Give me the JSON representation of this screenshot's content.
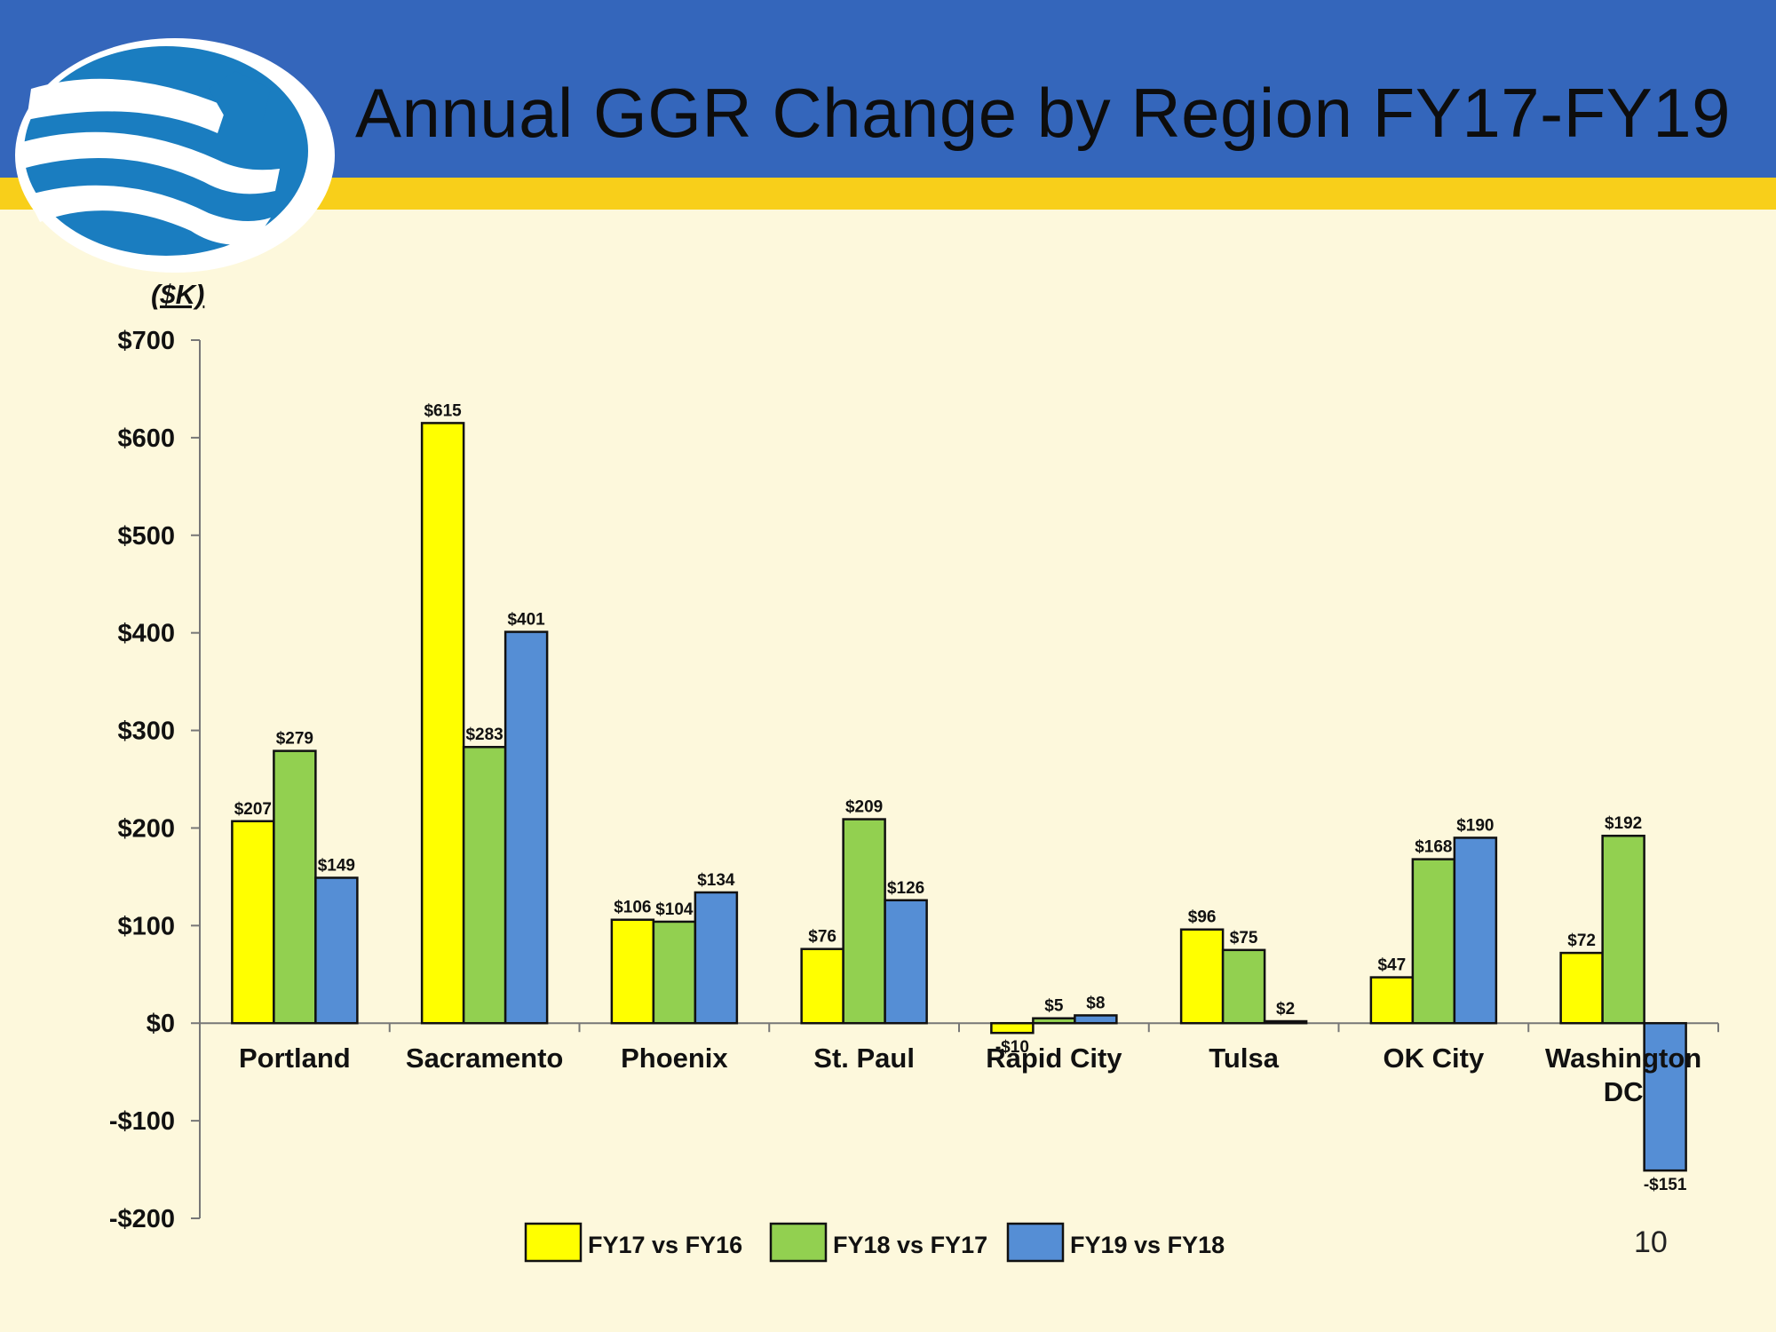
{
  "slide": {
    "title": "Annual GGR Change by Region FY17-FY19",
    "page_number": "10",
    "colors": {
      "header": "#3466bb",
      "band": "#f8cf1a",
      "background": "#fdf8dc"
    },
    "logo": "eagle-wave-logo"
  },
  "chart_data": {
    "type": "bar",
    "ylabel": "($K)",
    "ylim": [
      -200,
      700
    ],
    "yticks": [
      {
        "value": 700,
        "label": "$700"
      },
      {
        "value": 600,
        "label": "$600"
      },
      {
        "value": 500,
        "label": "$500"
      },
      {
        "value": 400,
        "label": "$400"
      },
      {
        "value": 300,
        "label": "$300"
      },
      {
        "value": 200,
        "label": "$200"
      },
      {
        "value": 100,
        "label": "$100"
      },
      {
        "value": 0,
        "label": "$0"
      },
      {
        "value": -100,
        "label": "-$100"
      },
      {
        "value": -200,
        "label": "-$200"
      }
    ],
    "categories": [
      "Portland",
      "Sacramento",
      "Phoenix",
      "St. Paul",
      "Rapid City",
      "Tulsa",
      "OK City",
      "Washington DC"
    ],
    "category_lines": [
      [
        "Portland"
      ],
      [
        "Sacramento"
      ],
      [
        "Phoenix"
      ],
      [
        "St. Paul"
      ],
      [
        "Rapid City"
      ],
      [
        "Tulsa"
      ],
      [
        "OK City"
      ],
      [
        "Washington",
        "DC"
      ]
    ],
    "series": [
      {
        "name": "FY17 vs FY16",
        "color": "#ffff00",
        "values": [
          207,
          615,
          106,
          76,
          -10,
          96,
          47,
          72
        ],
        "labels": [
          "$207",
          "$615",
          "$106",
          "$76",
          "-$10",
          "$96",
          "$47",
          "$72"
        ]
      },
      {
        "name": "FY18 vs FY17",
        "color": "#92d050",
        "values": [
          279,
          283,
          104,
          209,
          5,
          75,
          168,
          192
        ],
        "labels": [
          "$279",
          "$283",
          "$104",
          "$209",
          "$5",
          "$75",
          "$168",
          "$192"
        ]
      },
      {
        "name": "FY19 vs FY18",
        "color": "#558ed5",
        "values": [
          149,
          401,
          134,
          126,
          8,
          2,
          190,
          -151
        ],
        "labels": [
          "$149",
          "$401",
          "$134",
          "$126",
          "$8",
          "$2",
          "$190",
          "-$151"
        ]
      }
    ],
    "legend": "bottom"
  }
}
